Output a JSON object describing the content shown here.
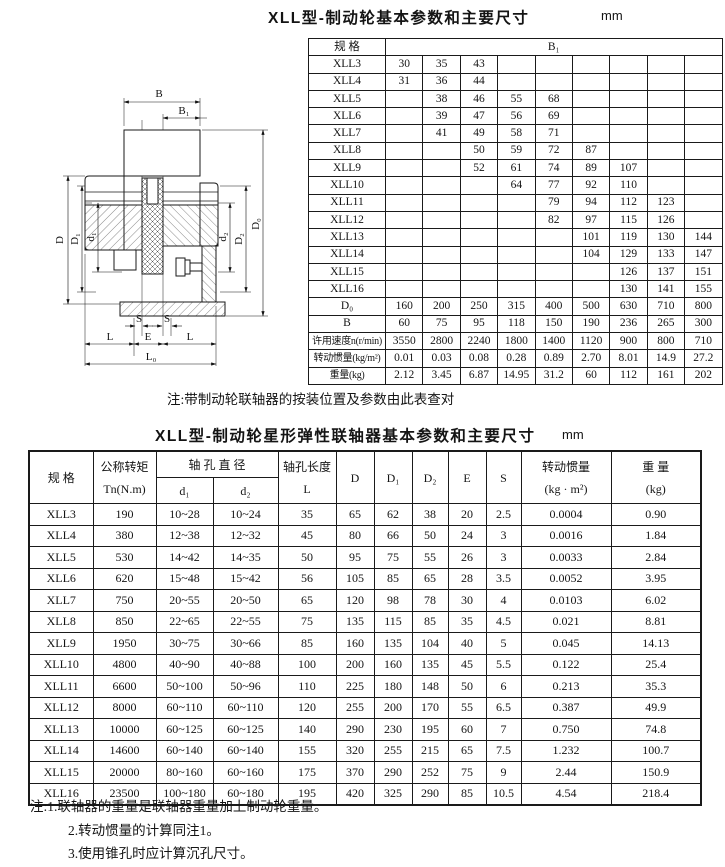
{
  "header": {
    "title1": "XLL型-制动轮基本参数和主要尺寸",
    "unit1": "mm",
    "note1": "注:带制动轮联轴器的按装位置及参数由此表查对",
    "title2": "XLL型-制动轮星形弹性联轴器基本参数和主要尺寸",
    "unit2": "mm"
  },
  "drawing": {
    "dims": {
      "B": "B",
      "B1": "B₁",
      "D": "D",
      "D1": "D₁",
      "d1": "d₁",
      "d2": "d₂",
      "D2": "D₂",
      "D0": "D₀",
      "S": "S",
      "E": "E",
      "L": "L",
      "L0": "L₀"
    }
  },
  "table1": {
    "spec_header": "规  格",
    "b1_header": "B₁",
    "rows": [
      {
        "spec": "XLL3",
        "cells": [
          "30",
          "35",
          "43",
          "",
          "",
          "",
          "",
          "",
          ""
        ]
      },
      {
        "spec": "XLL4",
        "cells": [
          "31",
          "36",
          "44",
          "",
          "",
          "",
          "",
          "",
          ""
        ]
      },
      {
        "spec": "XLL5",
        "cells": [
          "",
          "38",
          "46",
          "55",
          "68",
          "",
          "",
          "",
          ""
        ]
      },
      {
        "spec": "XLL6",
        "cells": [
          "",
          "39",
          "47",
          "56",
          "69",
          "",
          "",
          "",
          ""
        ]
      },
      {
        "spec": "XLL7",
        "cells": [
          "",
          "41",
          "49",
          "58",
          "71",
          "",
          "",
          "",
          ""
        ]
      },
      {
        "spec": "XLL8",
        "cells": [
          "",
          "",
          "50",
          "59",
          "72",
          "87",
          "",
          "",
          ""
        ]
      },
      {
        "spec": "XLL9",
        "cells": [
          "",
          "",
          "52",
          "61",
          "74",
          "89",
          "107",
          "",
          ""
        ]
      },
      {
        "spec": "XLL10",
        "cells": [
          "",
          "",
          "",
          "64",
          "77",
          "92",
          "110",
          "",
          ""
        ]
      },
      {
        "spec": "XLL11",
        "cells": [
          "",
          "",
          "",
          "",
          "79",
          "94",
          "112",
          "123",
          ""
        ]
      },
      {
        "spec": "XLL12",
        "cells": [
          "",
          "",
          "",
          "",
          "82",
          "97",
          "115",
          "126",
          ""
        ]
      },
      {
        "spec": "XLL13",
        "cells": [
          "",
          "",
          "",
          "",
          "",
          "101",
          "119",
          "130",
          "144"
        ]
      },
      {
        "spec": "XLL14",
        "cells": [
          "",
          "",
          "",
          "",
          "",
          "104",
          "129",
          "133",
          "147"
        ]
      },
      {
        "spec": "XLL15",
        "cells": [
          "",
          "",
          "",
          "",
          "",
          "",
          "126",
          "137",
          "151"
        ]
      },
      {
        "spec": "XLL16",
        "cells": [
          "",
          "",
          "",
          "",
          "",
          "",
          "130",
          "141",
          "155"
        ]
      }
    ],
    "footer_rows": [
      {
        "label": "D₀",
        "small": false,
        "cells": [
          "160",
          "200",
          "250",
          "315",
          "400",
          "500",
          "630",
          "710",
          "800"
        ]
      },
      {
        "label": "B",
        "small": false,
        "cells": [
          "60",
          "75",
          "95",
          "118",
          "150",
          "190",
          "236",
          "265",
          "300"
        ]
      },
      {
        "label": "许用速度n(r/min)",
        "small": true,
        "cells": [
          "3550",
          "2800",
          "2240",
          "1800",
          "1400",
          "1120",
          "900",
          "800",
          "710"
        ]
      },
      {
        "label": "转动惯量(kg/m²)",
        "small": true,
        "cells": [
          "0.01",
          "0.03",
          "0.08",
          "0.28",
          "0.89",
          "2.70",
          "8.01",
          "14.9",
          "27.2"
        ]
      },
      {
        "label": "重量(kg)",
        "small": true,
        "cells": [
          "2.12",
          "3.45",
          "6.87",
          "14.95",
          "31.2",
          "60",
          "112",
          "161",
          "202"
        ]
      }
    ]
  },
  "table2": {
    "headers": {
      "spec": "规   格",
      "torque_l1": "公称转矩",
      "torque_l2": "Tn(N.m)",
      "bore_dia": "轴 孔 直 径",
      "d1": "d₁",
      "d2": "d₂",
      "bore_len_l1": "轴孔长度",
      "bore_len_l2": "L",
      "D": "D",
      "D1": "D₁",
      "D2": "D₂",
      "E": "E",
      "S": "S",
      "inertia_l1": "转动惯量",
      "inertia_l2": "(kg · m²)",
      "weight_l1": "重 量",
      "weight_l2": "(kg)"
    },
    "rows": [
      [
        "XLL3",
        "190",
        "10~28",
        "10~24",
        "35",
        "65",
        "62",
        "38",
        "20",
        "2.5",
        "0.0004",
        "0.90"
      ],
      [
        "XLL4",
        "380",
        "12~38",
        "12~32",
        "45",
        "80",
        "66",
        "50",
        "24",
        "3",
        "0.0016",
        "1.84"
      ],
      [
        "XLL5",
        "530",
        "14~42",
        "14~35",
        "50",
        "95",
        "75",
        "55",
        "26",
        "3",
        "0.0033",
        "2.84"
      ],
      [
        "XLL6",
        "620",
        "15~48",
        "15~42",
        "56",
        "105",
        "85",
        "65",
        "28",
        "3.5",
        "0.0052",
        "3.95"
      ],
      [
        "XLL7",
        "750",
        "20~55",
        "20~50",
        "65",
        "120",
        "98",
        "78",
        "30",
        "4",
        "0.0103",
        "6.02"
      ],
      [
        "XLL8",
        "850",
        "22~65",
        "22~55",
        "75",
        "135",
        "115",
        "85",
        "35",
        "4.5",
        "0.021",
        "8.81"
      ],
      [
        "XLL9",
        "1950",
        "30~75",
        "30~66",
        "85",
        "160",
        "135",
        "104",
        "40",
        "5",
        "0.045",
        "14.13"
      ],
      [
        "XLL10",
        "4800",
        "40~90",
        "40~88",
        "100",
        "200",
        "160",
        "135",
        "45",
        "5.5",
        "0.122",
        "25.4"
      ],
      [
        "XLL11",
        "6600",
        "50~100",
        "50~96",
        "110",
        "225",
        "180",
        "148",
        "50",
        "6",
        "0.213",
        "35.3"
      ],
      [
        "XLL12",
        "8000",
        "60~110",
        "60~110",
        "120",
        "255",
        "200",
        "170",
        "55",
        "6.5",
        "0.387",
        "49.9"
      ],
      [
        "XLL13",
        "10000",
        "60~125",
        "60~125",
        "140",
        "290",
        "230",
        "195",
        "60",
        "7",
        "0.750",
        "74.8"
      ],
      [
        "XLL14",
        "14600",
        "60~140",
        "60~140",
        "155",
        "320",
        "255",
        "215",
        "65",
        "7.5",
        "1.232",
        "100.7"
      ],
      [
        "XLL15",
        "20000",
        "80~160",
        "60~160",
        "175",
        "370",
        "290",
        "252",
        "75",
        "9",
        "2.44",
        "150.9"
      ],
      [
        "XLL16",
        "23500",
        "100~180",
        "60~180",
        "195",
        "420",
        "325",
        "290",
        "85",
        "10.5",
        "4.54",
        "218.4"
      ]
    ]
  },
  "footnotes": [
    "注:1.联轴器的重量是联轴器重量加上制动轮重量。",
    "2.转动惯量的计算同注1。",
    "3.使用锥孔时应计算沉孔尺寸。"
  ]
}
